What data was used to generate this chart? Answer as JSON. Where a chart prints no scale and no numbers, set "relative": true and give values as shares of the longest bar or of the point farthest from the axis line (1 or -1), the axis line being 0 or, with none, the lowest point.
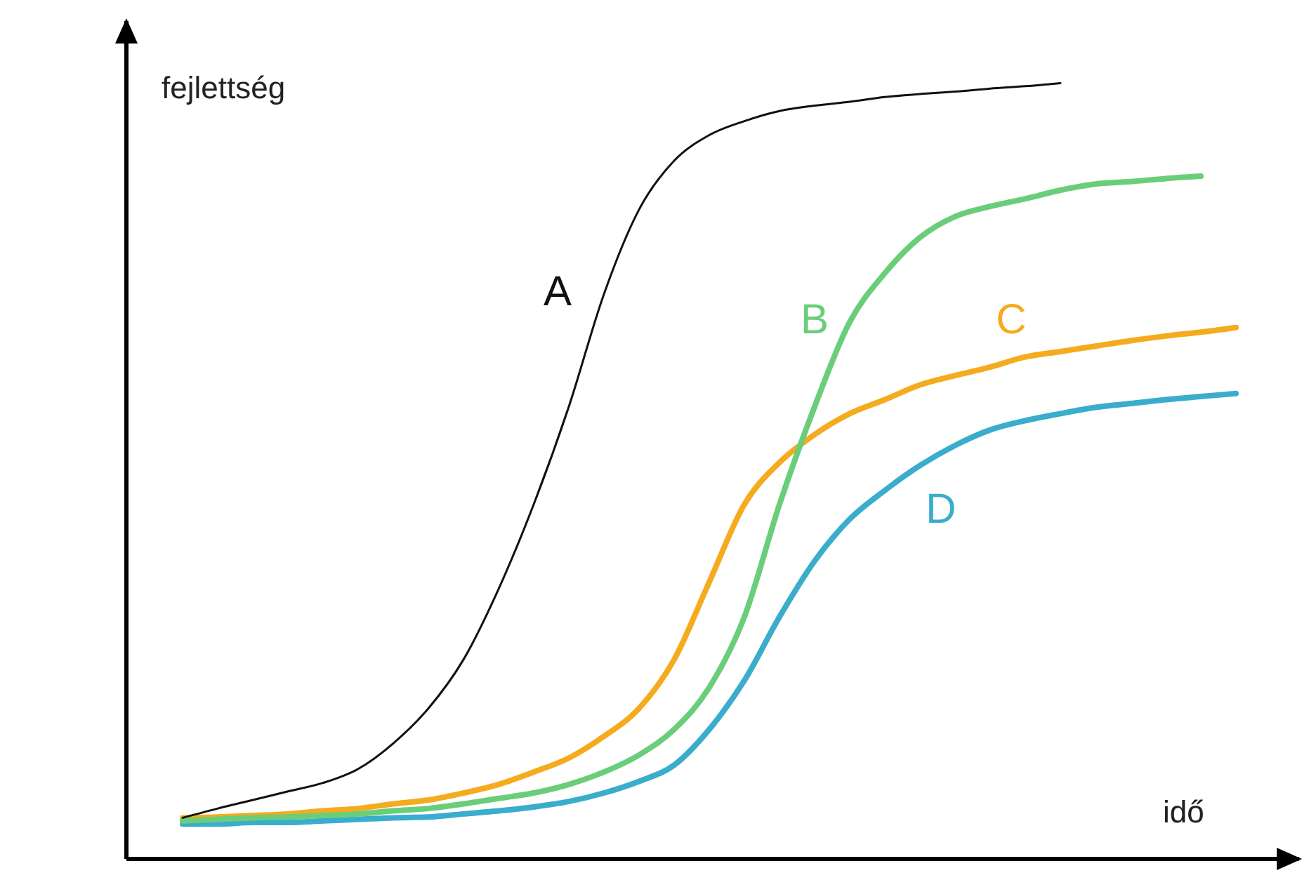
{
  "chart_data": {
    "type": "line",
    "relative": true,
    "xlabel": "idő",
    "ylabel": "fejlettség",
    "categories": [
      null,
      null,
      null,
      null,
      null,
      null,
      null,
      null,
      null,
      null,
      null,
      null,
      null,
      null,
      null,
      null,
      null,
      null,
      null,
      null,
      null,
      null,
      null,
      null,
      null,
      null,
      null,
      null,
      null,
      null,
      null
    ],
    "series": [
      {
        "name": "A",
        "color": "#111111",
        "values": [
          0.053,
          0.065,
          0.076,
          0.087,
          0.098,
          0.116,
          0.149,
          0.194,
          0.257,
          0.348,
          0.457,
          0.583,
          0.728,
          0.837,
          0.9,
          0.933,
          0.951,
          0.964,
          0.971,
          0.976,
          0.982,
          0.986,
          0.989,
          0.993,
          0.996,
          1,
          null,
          null,
          null,
          null,
          null
        ]
      },
      {
        "name": "B",
        "color": "#6acd7a",
        "values": [
          0.049,
          0.051,
          0.053,
          0.054,
          0.056,
          0.058,
          0.062,
          0.065,
          0.071,
          0.078,
          0.085,
          0.096,
          0.112,
          0.134,
          0.167,
          0.221,
          0.312,
          0.457,
          0.583,
          0.692,
          0.755,
          0.801,
          0.828,
          0.841,
          0.851,
          0.862,
          0.87,
          0.873,
          0.877,
          0.88,
          null
        ]
      },
      {
        "name": "C",
        "color": "#f5ab1e",
        "values": [
          0.053,
          0.054,
          0.056,
          0.058,
          0.062,
          0.065,
          0.071,
          0.076,
          0.085,
          0.096,
          0.112,
          0.13,
          0.158,
          0.194,
          0.257,
          0.357,
          0.457,
          0.511,
          0.547,
          0.574,
          0.592,
          0.611,
          0.623,
          0.634,
          0.647,
          0.654,
          0.661,
          0.668,
          0.674,
          0.679,
          0.685
        ]
      },
      {
        "name": "D",
        "color": "#3aaccc",
        "values": [
          0.045,
          0.045,
          0.047,
          0.047,
          0.049,
          0.051,
          0.053,
          0.054,
          0.058,
          0.062,
          0.067,
          0.074,
          0.085,
          0.1,
          0.121,
          0.167,
          0.23,
          0.312,
          0.384,
          0.438,
          0.475,
          0.507,
          0.533,
          0.553,
          0.565,
          0.574,
          0.582,
          0.587,
          0.592,
          0.596,
          0.6
        ]
      }
    ]
  }
}
